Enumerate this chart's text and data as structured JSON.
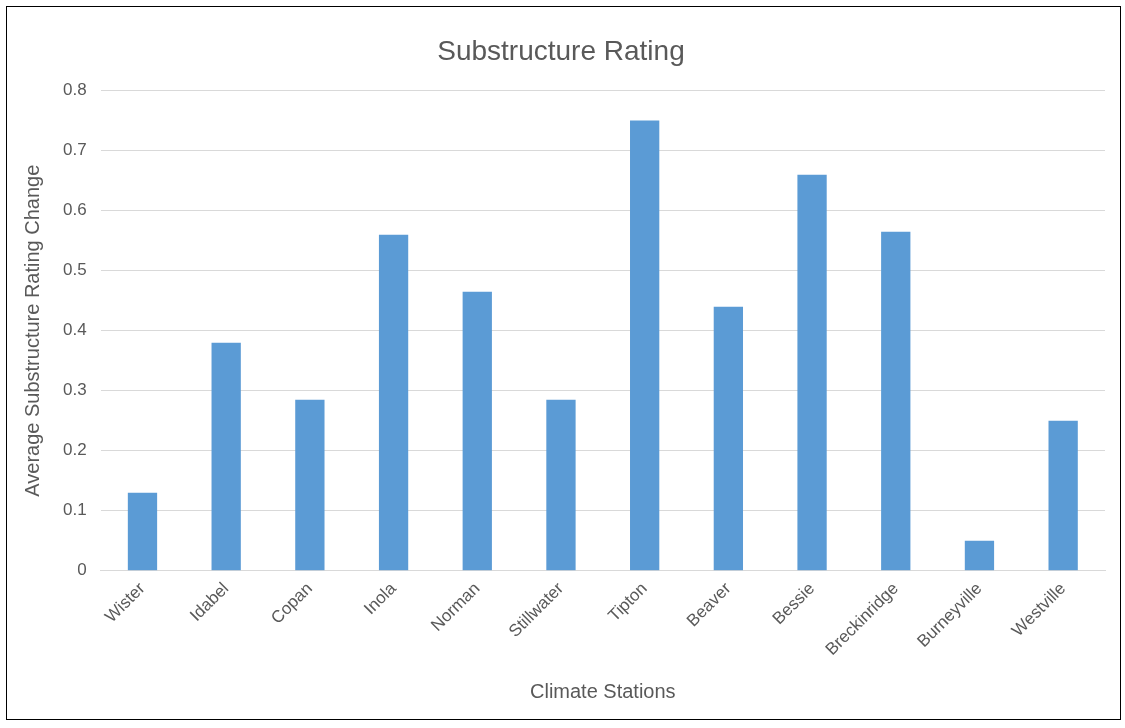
{
  "chart_data": {
    "type": "bar",
    "title": "Substructure Rating",
    "xlabel": "Climate Stations",
    "ylabel": "Average Substructure Rating Change",
    "categories": [
      "Wister",
      "Idabel",
      "Copan",
      "Inola",
      "Norman",
      "Stillwater",
      "Tipton",
      "Beaver",
      "Bessie",
      "Breckinridge",
      "Burneyville",
      "Westville"
    ],
    "values": [
      0.13,
      0.38,
      0.285,
      0.56,
      0.465,
      0.285,
      0.75,
      0.44,
      0.66,
      0.565,
      0.05,
      0.25
    ],
    "color": "#5b9bd5",
    "ylim": [
      0,
      0.8
    ],
    "yticks": [
      0,
      0.1,
      0.2,
      0.3,
      0.4,
      0.5,
      0.6,
      0.7,
      0.8
    ],
    "grid": "y",
    "legend": false
  }
}
